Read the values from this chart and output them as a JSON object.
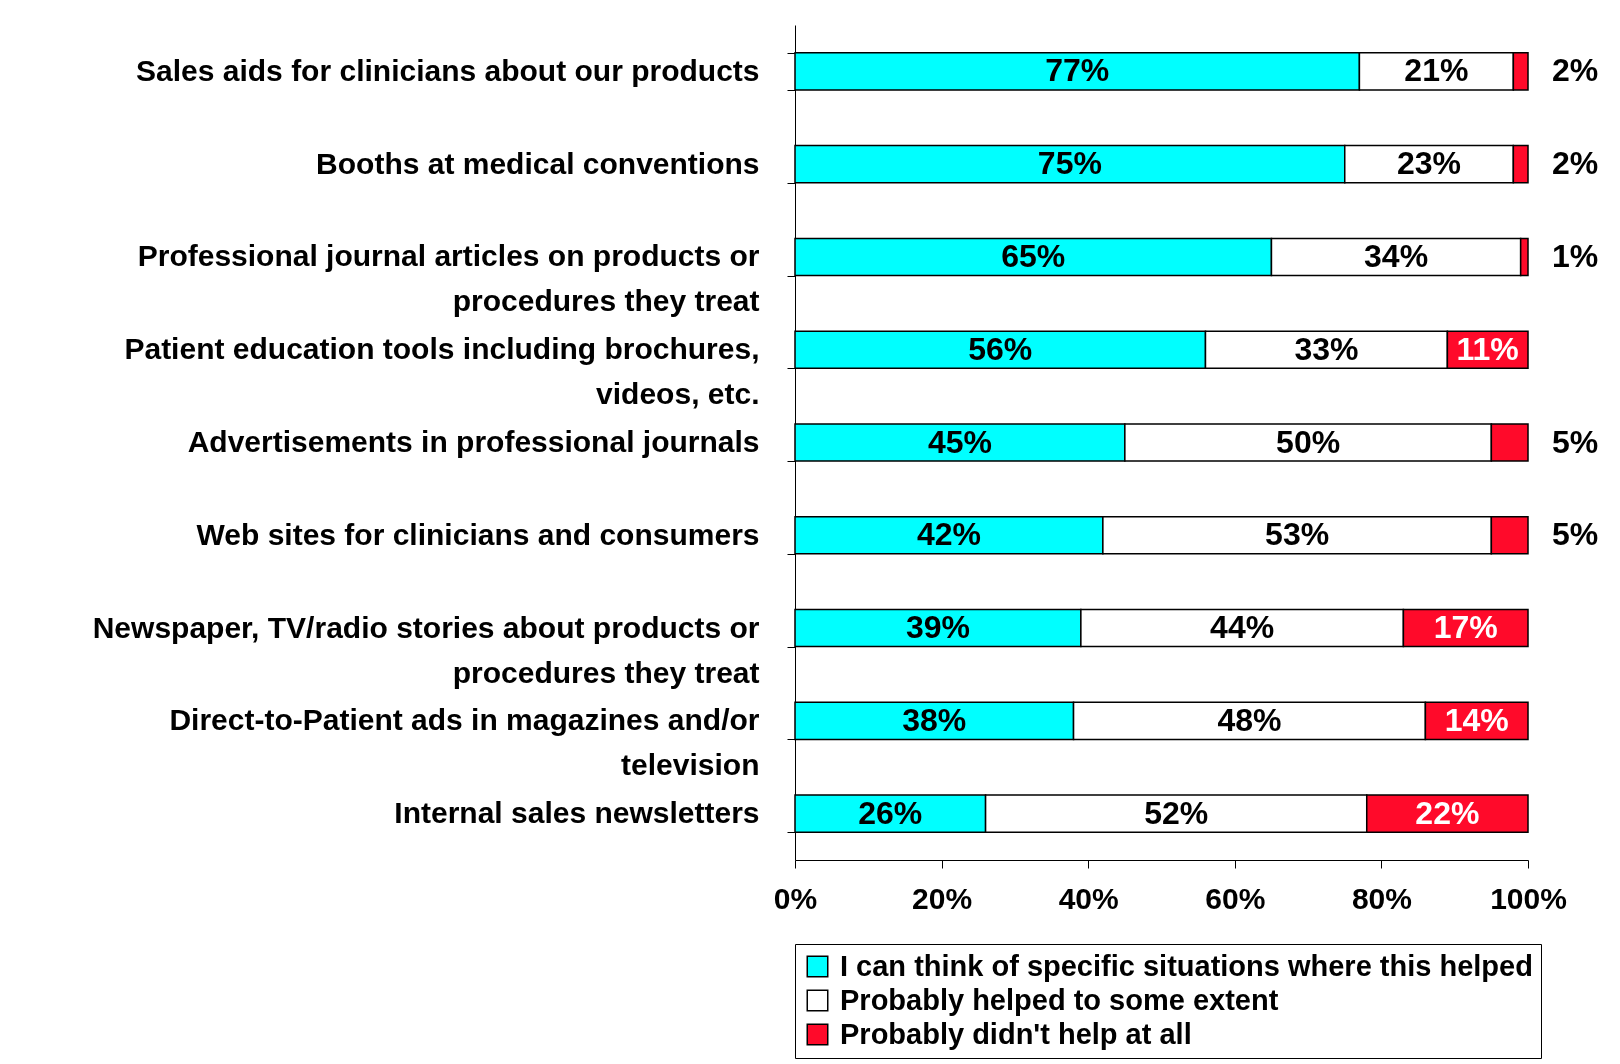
{
  "chart_data": {
    "type": "bar",
    "orientation": "horizontal",
    "stacked": true,
    "legend": "bottom",
    "grid": false,
    "categories": [
      "Sales aids for clinicians about our products",
      "Booths at medical conventions",
      "Professional journal articles on products or procedures they treat",
      "Patient education tools including brochures, videos, etc.",
      "Advertisements in professional journals",
      "Web sites for clinicians and consumers",
      "Newspaper, TV/radio stories about products or procedures they treat",
      "Direct-to-Patient ads in magazines and/or television",
      "Internal sales newsletters"
    ],
    "xlim": [
      0,
      100
    ],
    "xticks": [
      {
        "value": 0,
        "label": "0%"
      },
      {
        "value": 20,
        "label": "20%"
      },
      {
        "value": 40,
        "label": "40%"
      },
      {
        "value": 60,
        "label": "60%"
      },
      {
        "value": 80,
        "label": "80%"
      },
      {
        "value": 100,
        "label": "100%"
      }
    ],
    "series": [
      {
        "name": "I can think of specific situations where this helped",
        "color": "#00ffff",
        "values": [
          77,
          75,
          65,
          56,
          45,
          42,
          39,
          38,
          26
        ],
        "value_labels": [
          "77%",
          "75%",
          "65%",
          "56%",
          "45%",
          "42%",
          "39%",
          "38%",
          "26%"
        ]
      },
      {
        "name": "Probably helped to some extent",
        "color": "#ffffff",
        "values": [
          21,
          23,
          34,
          33,
          50,
          53,
          44,
          48,
          52
        ],
        "value_labels": [
          "21%",
          "23%",
          "34%",
          "33%",
          "50%",
          "53%",
          "44%",
          "48%",
          "52%"
        ]
      },
      {
        "name": "Probably didn't help at all",
        "color": "#ff0a2a",
        "values": [
          2,
          2,
          1,
          11,
          5,
          5,
          17,
          14,
          22
        ],
        "value_labels": [
          "2%",
          "2%",
          "1%",
          "11%",
          "5%",
          "5%",
          "17%",
          "14%",
          "22%"
        ]
      }
    ]
  }
}
